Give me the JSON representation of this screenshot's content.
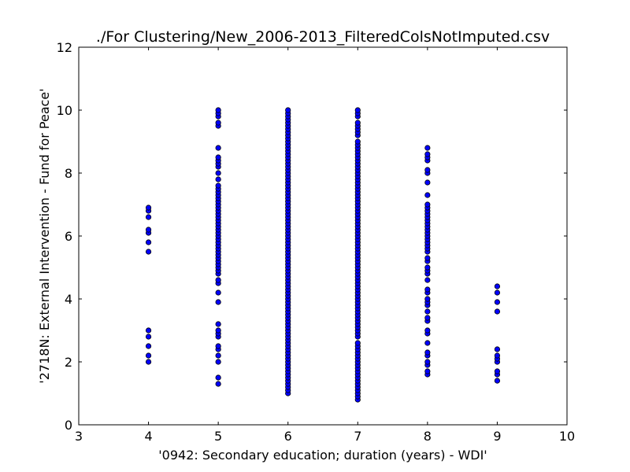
{
  "chart_data": {
    "type": "scatter",
    "title": "./For Clustering/New_2006-2013_FilteredColsNotImputed.csv",
    "xlabel": "'0942: Secondary education; duration  (years) - WDI'",
    "ylabel": "'2718N: External Intervention - Fund for Peace'",
    "xlim": [
      3,
      10
    ],
    "ylim": [
      0,
      12
    ],
    "xticks": [
      3,
      4,
      5,
      6,
      7,
      8,
      9,
      10
    ],
    "yticks": [
      0,
      2,
      4,
      6,
      8,
      10,
      12
    ],
    "grid": false,
    "marker_color": "#0000ff",
    "marker_edge_color": "#000000",
    "points": [
      {
        "x": 4,
        "y": [
          2.0,
          2.2,
          2.5,
          2.8,
          3.0,
          5.5,
          5.8,
          6.1,
          6.2,
          6.6,
          6.8,
          6.9
        ]
      },
      {
        "x": 5,
        "y": [
          1.3,
          1.5,
          2.0,
          2.2,
          2.4,
          2.5,
          2.8,
          2.9,
          3.0,
          3.2,
          3.9,
          4.2,
          4.5,
          4.6,
          4.8,
          4.9,
          5.0,
          5.1,
          5.2,
          5.3,
          5.4,
          5.5,
          5.6,
          5.7,
          5.8,
          5.9,
          6.0,
          6.1,
          6.2,
          6.3,
          6.4,
          6.5,
          6.6,
          6.7,
          6.8,
          6.9,
          7.0,
          7.1,
          7.2,
          7.3,
          7.4,
          7.5,
          7.6,
          7.8,
          8.0,
          8.2,
          8.3,
          8.4,
          8.5,
          8.8,
          9.5,
          9.6,
          9.8,
          9.9,
          10.0
        ]
      },
      {
        "x": 6,
        "y": [
          1.0,
          1.1,
          1.2,
          1.3,
          1.4,
          1.5,
          1.6,
          1.7,
          1.8,
          1.9,
          2.0,
          2.1,
          2.2,
          2.3,
          2.4,
          2.5,
          2.6,
          2.7,
          2.8,
          2.9,
          3.0,
          3.1,
          3.2,
          3.3,
          3.4,
          3.5,
          3.6,
          3.7,
          3.8,
          3.9,
          4.0,
          4.1,
          4.2,
          4.3,
          4.4,
          4.5,
          4.6,
          4.7,
          4.8,
          4.9,
          5.0,
          5.1,
          5.2,
          5.3,
          5.4,
          5.5,
          5.6,
          5.7,
          5.8,
          5.9,
          6.0,
          6.1,
          6.2,
          6.3,
          6.4,
          6.5,
          6.6,
          6.7,
          6.8,
          6.9,
          7.0,
          7.1,
          7.2,
          7.3,
          7.4,
          7.5,
          7.6,
          7.7,
          7.8,
          7.9,
          8.0,
          8.1,
          8.2,
          8.3,
          8.4,
          8.5,
          8.6,
          8.7,
          8.8,
          8.9,
          9.0,
          9.1,
          9.2,
          9.3,
          9.4,
          9.5,
          9.6,
          9.7,
          9.8,
          9.9,
          10.0
        ]
      },
      {
        "x": 7,
        "y": [
          0.8,
          0.9,
          1.0,
          1.1,
          1.2,
          1.3,
          1.4,
          1.5,
          1.6,
          1.7,
          1.8,
          1.9,
          2.0,
          2.1,
          2.2,
          2.3,
          2.4,
          2.5,
          2.6,
          2.8,
          2.9,
          3.0,
          3.1,
          3.2,
          3.3,
          3.4,
          3.5,
          3.6,
          3.7,
          3.8,
          3.9,
          4.0,
          4.1,
          4.2,
          4.3,
          4.4,
          4.5,
          4.6,
          4.7,
          4.8,
          4.9,
          5.0,
          5.1,
          5.2,
          5.3,
          5.4,
          5.5,
          5.6,
          5.7,
          5.8,
          5.9,
          6.0,
          6.1,
          6.2,
          6.3,
          6.4,
          6.5,
          6.6,
          6.7,
          6.8,
          6.9,
          7.0,
          7.1,
          7.2,
          7.3,
          7.4,
          7.5,
          7.6,
          7.7,
          7.8,
          7.9,
          8.0,
          8.1,
          8.2,
          8.3,
          8.4,
          8.5,
          8.6,
          8.7,
          8.8,
          8.9,
          9.0,
          9.2,
          9.3,
          9.4,
          9.5,
          9.6,
          9.8,
          9.9,
          10.0
        ]
      },
      {
        "x": 8,
        "y": [
          1.6,
          1.7,
          1.9,
          2.0,
          2.2,
          2.3,
          2.6,
          2.9,
          3.0,
          3.3,
          3.4,
          3.6,
          3.8,
          3.9,
          4.0,
          4.2,
          4.3,
          4.6,
          4.8,
          4.9,
          5.0,
          5.2,
          5.3,
          5.5,
          5.6,
          5.7,
          5.8,
          5.9,
          6.0,
          6.1,
          6.2,
          6.3,
          6.4,
          6.5,
          6.6,
          6.7,
          6.8,
          6.9,
          7.0,
          7.3,
          7.7,
          8.0,
          8.1,
          8.4,
          8.5,
          8.6,
          8.8
        ]
      },
      {
        "x": 9,
        "y": [
          1.4,
          1.6,
          1.7,
          2.0,
          2.1,
          2.2,
          2.4,
          3.6,
          3.9,
          4.2,
          4.4
        ]
      }
    ]
  }
}
